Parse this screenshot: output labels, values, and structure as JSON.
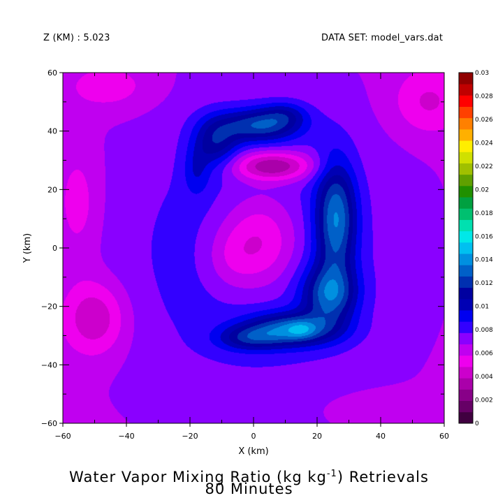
{
  "header": {
    "level_label": "Z (KM) : 5.023",
    "dataset_label": "DATA SET: model_vars.dat"
  },
  "title": {
    "line1_prefix": "Water Vapor Mixing Ratio (kg kg",
    "line1_sup": "-1",
    "line1_suffix": ") Retrievals",
    "line2": "80 Minutes"
  },
  "chart_data": {
    "type": "heatmap",
    "subtype": "filled-contour",
    "title": "Water Vapor Mixing Ratio (kg kg-1) Retrievals 80 Minutes",
    "xlabel": "X (km)",
    "ylabel": "Y (km)",
    "xlim": [
      -60,
      60
    ],
    "ylim": [
      -60,
      60
    ],
    "x_ticks": [
      -60,
      -40,
      -20,
      0,
      20,
      40,
      60
    ],
    "y_ticks": [
      -60,
      -40,
      -20,
      0,
      20,
      40,
      60
    ],
    "x_tick_labels": [
      "−60",
      "−40",
      "−20",
      "0",
      "20",
      "40",
      "60"
    ],
    "y_tick_labels": [
      "−60",
      "−40",
      "−20",
      "0",
      "20",
      "40",
      "60"
    ],
    "grid": false,
    "colorbar": {
      "placement": "right",
      "min": 0,
      "max": 0.03,
      "step": 0.001,
      "labels": [
        "0",
        "0.002",
        "0.004",
        "0.006",
        "0.008",
        "0.01",
        "0.012",
        "0.014",
        "0.016",
        "0.018",
        "0.02",
        "0.022",
        "0.024",
        "0.026",
        "0.028",
        "0.03"
      ],
      "label_values": [
        0,
        0.002,
        0.004,
        0.006,
        0.008,
        0.01,
        0.012,
        0.014,
        0.016,
        0.018,
        0.02,
        0.022,
        0.024,
        0.026,
        0.028,
        0.03
      ],
      "colors": [
        "#400040",
        "#660066",
        "#880088",
        "#aa00aa",
        "#cc00cc",
        "#ee00ee",
        "#c000f0",
        "#8a00ff",
        "#3300ff",
        "#0000f0",
        "#0000b4",
        "#0000a0",
        "#0030b0",
        "#0060c8",
        "#0090e0",
        "#00c0f0",
        "#00e8e8",
        "#00e0b0",
        "#00c070",
        "#00a040",
        "#209000",
        "#60a000",
        "#a0c000",
        "#d0e000",
        "#ffee00",
        "#ffb000",
        "#ff8000",
        "#ff4000",
        "#ff0000",
        "#c00000",
        "#900000"
      ]
    },
    "field": {
      "background_mixing_ratio": 0.0066,
      "features": [
        {
          "x": 0,
          "y": -2,
          "sx": 34,
          "sy": 40,
          "amp": 0.0022,
          "note": "inner dry-to-moist ring"
        },
        {
          "x": 2,
          "y": 2,
          "sx": 9,
          "sy": 12,
          "amp": -0.0036,
          "note": "central dry core"
        },
        {
          "x": -8,
          "y": -4,
          "sx": 6,
          "sy": 8,
          "amp": -0.0012
        },
        {
          "x": 26,
          "y": 10,
          "sx": 4.5,
          "sy": 14,
          "amp": 0.006,
          "note": "eastern moist band"
        },
        {
          "x": 24,
          "y": -16,
          "sx": 6,
          "sy": 7,
          "amp": 0.0052
        },
        {
          "x": 12,
          "y": -28,
          "sx": 10,
          "sy": 4,
          "amp": 0.0058,
          "note": "southern moist arc"
        },
        {
          "x": 15,
          "y": -28,
          "sx": 3,
          "sy": 2,
          "amp": 0.0015
        },
        {
          "x": -2,
          "y": -31,
          "sx": 7,
          "sy": 3,
          "amp": 0.003
        },
        {
          "x": 2,
          "y": 42,
          "sx": 9,
          "sy": 4,
          "amp": 0.0052,
          "note": "northern moist arc"
        },
        {
          "x": 10,
          "y": 46,
          "sx": 5,
          "sy": 3,
          "amp": 0.002
        },
        {
          "x": -12,
          "y": 36,
          "sx": 5,
          "sy": 6,
          "amp": 0.0036
        },
        {
          "x": -18,
          "y": 26,
          "sx": 3,
          "sy": 6,
          "amp": 0.0018
        },
        {
          "x": 6,
          "y": 28,
          "sx": 9,
          "sy": 3.5,
          "amp": -0.0048,
          "note": "dry tongue"
        },
        {
          "x": -50,
          "y": -24,
          "sx": 7,
          "sy": 9,
          "amp": -0.003,
          "note": "western dry area"
        },
        {
          "x": -55,
          "y": 15,
          "sx": 5,
          "sy": 14,
          "amp": -0.0015
        },
        {
          "x": 55,
          "y": 50,
          "sx": 8,
          "sy": 8,
          "amp": -0.002
        },
        {
          "x": -45,
          "y": 55,
          "sx": 10,
          "sy": 6,
          "amp": -0.0014
        },
        {
          "x": 40,
          "y": -55,
          "sx": 12,
          "sy": 4,
          "amp": -0.001
        }
      ]
    }
  }
}
